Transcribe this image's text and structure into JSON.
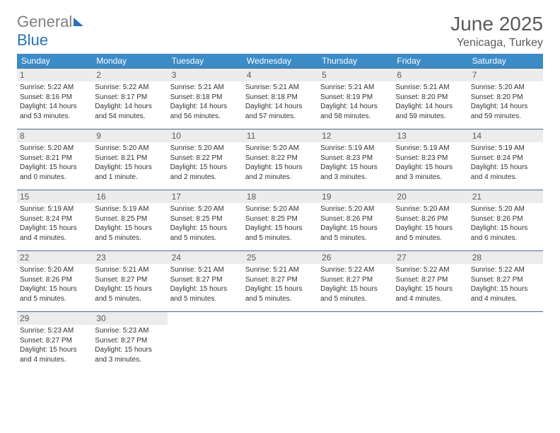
{
  "logo": {
    "part1": "General",
    "part2": "Blue"
  },
  "title": "June 2025",
  "location": "Yenicaga, Turkey",
  "weekdays": [
    "Sunday",
    "Monday",
    "Tuesday",
    "Wednesday",
    "Thursday",
    "Friday",
    "Saturday"
  ],
  "header_bg": "#3b8bc7",
  "daynum_bg": "#ececec",
  "border_color": "#4a6a8a",
  "days": [
    {
      "n": "1",
      "sr": "5:22 AM",
      "ss": "8:16 PM",
      "dl": "14 hours and 53 minutes."
    },
    {
      "n": "2",
      "sr": "5:22 AM",
      "ss": "8:17 PM",
      "dl": "14 hours and 54 minutes."
    },
    {
      "n": "3",
      "sr": "5:21 AM",
      "ss": "8:18 PM",
      "dl": "14 hours and 56 minutes."
    },
    {
      "n": "4",
      "sr": "5:21 AM",
      "ss": "8:18 PM",
      "dl": "14 hours and 57 minutes."
    },
    {
      "n": "5",
      "sr": "5:21 AM",
      "ss": "8:19 PM",
      "dl": "14 hours and 58 minutes."
    },
    {
      "n": "6",
      "sr": "5:21 AM",
      "ss": "8:20 PM",
      "dl": "14 hours and 59 minutes."
    },
    {
      "n": "7",
      "sr": "5:20 AM",
      "ss": "8:20 PM",
      "dl": "14 hours and 59 minutes."
    },
    {
      "n": "8",
      "sr": "5:20 AM",
      "ss": "8:21 PM",
      "dl": "15 hours and 0 minutes."
    },
    {
      "n": "9",
      "sr": "5:20 AM",
      "ss": "8:21 PM",
      "dl": "15 hours and 1 minute."
    },
    {
      "n": "10",
      "sr": "5:20 AM",
      "ss": "8:22 PM",
      "dl": "15 hours and 2 minutes."
    },
    {
      "n": "11",
      "sr": "5:20 AM",
      "ss": "8:22 PM",
      "dl": "15 hours and 2 minutes."
    },
    {
      "n": "12",
      "sr": "5:19 AM",
      "ss": "8:23 PM",
      "dl": "15 hours and 3 minutes."
    },
    {
      "n": "13",
      "sr": "5:19 AM",
      "ss": "8:23 PM",
      "dl": "15 hours and 3 minutes."
    },
    {
      "n": "14",
      "sr": "5:19 AM",
      "ss": "8:24 PM",
      "dl": "15 hours and 4 minutes."
    },
    {
      "n": "15",
      "sr": "5:19 AM",
      "ss": "8:24 PM",
      "dl": "15 hours and 4 minutes."
    },
    {
      "n": "16",
      "sr": "5:19 AM",
      "ss": "8:25 PM",
      "dl": "15 hours and 5 minutes."
    },
    {
      "n": "17",
      "sr": "5:20 AM",
      "ss": "8:25 PM",
      "dl": "15 hours and 5 minutes."
    },
    {
      "n": "18",
      "sr": "5:20 AM",
      "ss": "8:25 PM",
      "dl": "15 hours and 5 minutes."
    },
    {
      "n": "19",
      "sr": "5:20 AM",
      "ss": "8:26 PM",
      "dl": "15 hours and 5 minutes."
    },
    {
      "n": "20",
      "sr": "5:20 AM",
      "ss": "8:26 PM",
      "dl": "15 hours and 5 minutes."
    },
    {
      "n": "21",
      "sr": "5:20 AM",
      "ss": "8:26 PM",
      "dl": "15 hours and 6 minutes."
    },
    {
      "n": "22",
      "sr": "5:20 AM",
      "ss": "8:26 PM",
      "dl": "15 hours and 5 minutes."
    },
    {
      "n": "23",
      "sr": "5:21 AM",
      "ss": "8:27 PM",
      "dl": "15 hours and 5 minutes."
    },
    {
      "n": "24",
      "sr": "5:21 AM",
      "ss": "8:27 PM",
      "dl": "15 hours and 5 minutes."
    },
    {
      "n": "25",
      "sr": "5:21 AM",
      "ss": "8:27 PM",
      "dl": "15 hours and 5 minutes."
    },
    {
      "n": "26",
      "sr": "5:22 AM",
      "ss": "8:27 PM",
      "dl": "15 hours and 5 minutes."
    },
    {
      "n": "27",
      "sr": "5:22 AM",
      "ss": "8:27 PM",
      "dl": "15 hours and 4 minutes."
    },
    {
      "n": "28",
      "sr": "5:22 AM",
      "ss": "8:27 PM",
      "dl": "15 hours and 4 minutes."
    },
    {
      "n": "29",
      "sr": "5:23 AM",
      "ss": "8:27 PM",
      "dl": "15 hours and 4 minutes."
    },
    {
      "n": "30",
      "sr": "5:23 AM",
      "ss": "8:27 PM",
      "dl": "15 hours and 3 minutes."
    }
  ],
  "labels": {
    "sunrise": "Sunrise: ",
    "sunset": "Sunset: ",
    "daylight": "Daylight: "
  }
}
